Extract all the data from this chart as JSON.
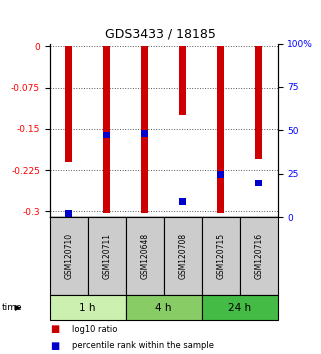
{
  "title": "GDS3433 / 18185",
  "samples": [
    "GSM120710",
    "GSM120711",
    "GSM120648",
    "GSM120708",
    "GSM120715",
    "GSM120716"
  ],
  "log10_ratio": [
    -0.21,
    -0.302,
    -0.302,
    -0.125,
    -0.302,
    -0.205
  ],
  "percentile_rank": [
    2,
    48,
    49,
    9,
    25,
    20
  ],
  "time_groups": [
    {
      "label": "1 h",
      "start": 0,
      "end": 2,
      "color": "#ccf0b0"
    },
    {
      "label": "4 h",
      "start": 2,
      "end": 4,
      "color": "#88cc66"
    },
    {
      "label": "24 h",
      "start": 4,
      "end": 6,
      "color": "#44bb44"
    }
  ],
  "ylim_left": [
    -0.31,
    0.005
  ],
  "ylim_right": [
    0,
    100
  ],
  "yticks_left": [
    0,
    -0.075,
    -0.15,
    -0.225,
    -0.3
  ],
  "yticks_right": [
    0,
    25,
    50,
    75,
    100
  ],
  "bar_color": "#cc0000",
  "percentile_color": "#0000cc",
  "bar_width": 0.18,
  "grid_color": "#555555",
  "sample_box_color": "#cccccc"
}
